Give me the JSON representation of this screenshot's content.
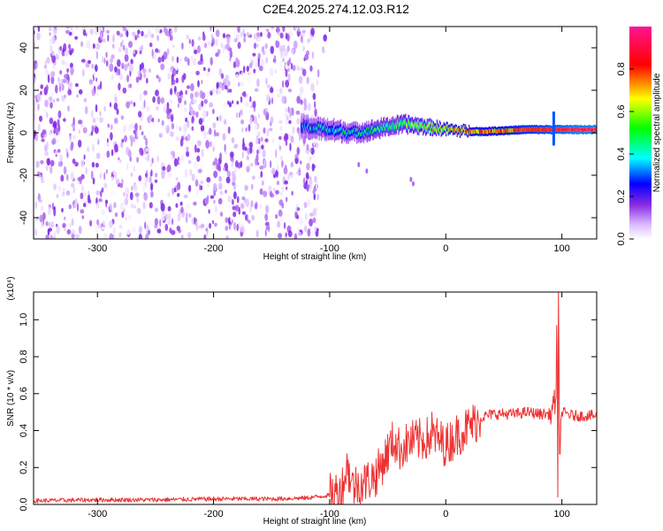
{
  "title": "C2E4.2025.274.12.03.R12",
  "chart_data": [
    {
      "type": "heatmap",
      "title": "C2E4.2025.274.12.03.R12",
      "xlabel": "Height of straight line (km)",
      "ylabel": "Frequency (Hz)",
      "xlim": [
        -355,
        130
      ],
      "ylim": [
        -50,
        50
      ],
      "xticks": [
        -300,
        -200,
        -100,
        0,
        100
      ],
      "yticks": [
        -40,
        -20,
        0,
        20,
        40
      ],
      "colorbar": {
        "label": "Normalized spectral amplitude",
        "range": [
          0.0,
          1.0
        ],
        "ticks": [
          0.0,
          0.2,
          0.4,
          0.6,
          0.8
        ],
        "colors": [
          "#ffffff",
          "#d9b8ff",
          "#8a2be2",
          "#0000ff",
          "#00ffff",
          "#00ff00",
          "#ffff00",
          "#ff0000",
          "#ff1493"
        ]
      },
      "noise_region": {
        "x_range": [
          -355,
          -110
        ],
        "freq_range": [
          -50,
          50
        ],
        "amplitude_range": [
          0.0,
          0.18
        ]
      },
      "signal_ridge": [
        {
          "x": -125,
          "freq": 3,
          "width": 10,
          "amplitude": 0.3
        },
        {
          "x": -110,
          "freq": 2,
          "width": 9,
          "amplitude": 0.33
        },
        {
          "x": -95,
          "freq": 1,
          "width": 9,
          "amplitude": 0.35
        },
        {
          "x": -80,
          "freq": 0,
          "width": 8,
          "amplitude": 0.36
        },
        {
          "x": -65,
          "freq": 1,
          "width": 8,
          "amplitude": 0.4
        },
        {
          "x": -50,
          "freq": 3,
          "width": 7,
          "amplitude": 0.45
        },
        {
          "x": -35,
          "freq": 4,
          "width": 7,
          "amplitude": 0.5
        },
        {
          "x": -20,
          "freq": 3,
          "width": 6,
          "amplitude": 0.55
        },
        {
          "x": -5,
          "freq": 2,
          "width": 5,
          "amplitude": 0.6
        },
        {
          "x": 10,
          "freq": 1,
          "width": 4,
          "amplitude": 0.65
        },
        {
          "x": 30,
          "freq": 0.5,
          "width": 4,
          "amplitude": 0.7
        },
        {
          "x": 50,
          "freq": 1,
          "width": 4,
          "amplitude": 0.75
        },
        {
          "x": 70,
          "freq": 1.5,
          "width": 4,
          "amplitude": 0.8
        },
        {
          "x": 90,
          "freq": 1.5,
          "width": 4,
          "amplitude": 0.85
        },
        {
          "x": 110,
          "freq": 1.5,
          "width": 4,
          "amplitude": 0.9
        },
        {
          "x": 130,
          "freq": 1.5,
          "width": 4,
          "amplitude": 0.92
        }
      ],
      "spike": {
        "x": 93,
        "freq_range": [
          -6,
          10
        ]
      },
      "outliers": [
        {
          "x": -75,
          "freq": -15
        },
        {
          "x": -68,
          "freq": -18
        },
        {
          "x": -30,
          "freq": -22
        },
        {
          "x": -28,
          "freq": -24
        }
      ]
    },
    {
      "type": "line",
      "xlabel": "Height of straight line (km)",
      "ylabel": "SNR (10 * v/v)",
      "y_multiplier_label": "(x10⁴)",
      "xlim": [
        -355,
        130
      ],
      "ylim": [
        0.0,
        1.15
      ],
      "xticks": [
        -300,
        -200,
        -100,
        0,
        100
      ],
      "yticks": [
        0.0,
        0.2,
        0.4,
        0.6,
        0.8,
        1.0
      ],
      "series": [
        {
          "name": "SNR",
          "color": "#ee3333",
          "points": [
            [
              -355,
              0.02
            ],
            [
              -300,
              0.025
            ],
            [
              -250,
              0.025
            ],
            [
              -200,
              0.03
            ],
            [
              -150,
              0.03
            ],
            [
              -120,
              0.035
            ],
            [
              -100,
              0.05
            ],
            [
              -90,
              0.08
            ],
            [
              -85,
              0.2
            ],
            [
              -80,
              0.1
            ],
            [
              -70,
              0.12
            ],
            [
              -60,
              0.16
            ],
            [
              -50,
              0.28
            ],
            [
              -45,
              0.35
            ],
            [
              -40,
              0.3
            ],
            [
              -35,
              0.32
            ],
            [
              -30,
              0.34
            ],
            [
              -20,
              0.35
            ],
            [
              -10,
              0.37
            ],
            [
              0,
              0.32
            ],
            [
              10,
              0.38
            ],
            [
              20,
              0.42
            ],
            [
              30,
              0.47
            ],
            [
              40,
              0.49
            ],
            [
              50,
              0.49
            ],
            [
              60,
              0.49
            ],
            [
              70,
              0.5
            ],
            [
              80,
              0.49
            ],
            [
              90,
              0.49
            ],
            [
              94,
              0.55
            ],
            [
              96,
              0.7
            ],
            [
              97,
              1.15
            ],
            [
              98,
              0.3
            ],
            [
              100,
              0.5
            ],
            [
              110,
              0.48
            ],
            [
              120,
              0.48
            ],
            [
              130,
              0.48
            ]
          ]
        }
      ],
      "spikes": [
        {
          "x": 97,
          "value": 1.15
        },
        {
          "x": 95.5,
          "value": 0.97
        },
        {
          "x": 96.5,
          "value": 0.04
        },
        {
          "x": -84,
          "value": 0.24
        },
        {
          "x": -50,
          "value": 0.38
        },
        {
          "x": -30,
          "value": 0.42
        },
        {
          "x": -12,
          "value": 0.5
        }
      ]
    }
  ]
}
